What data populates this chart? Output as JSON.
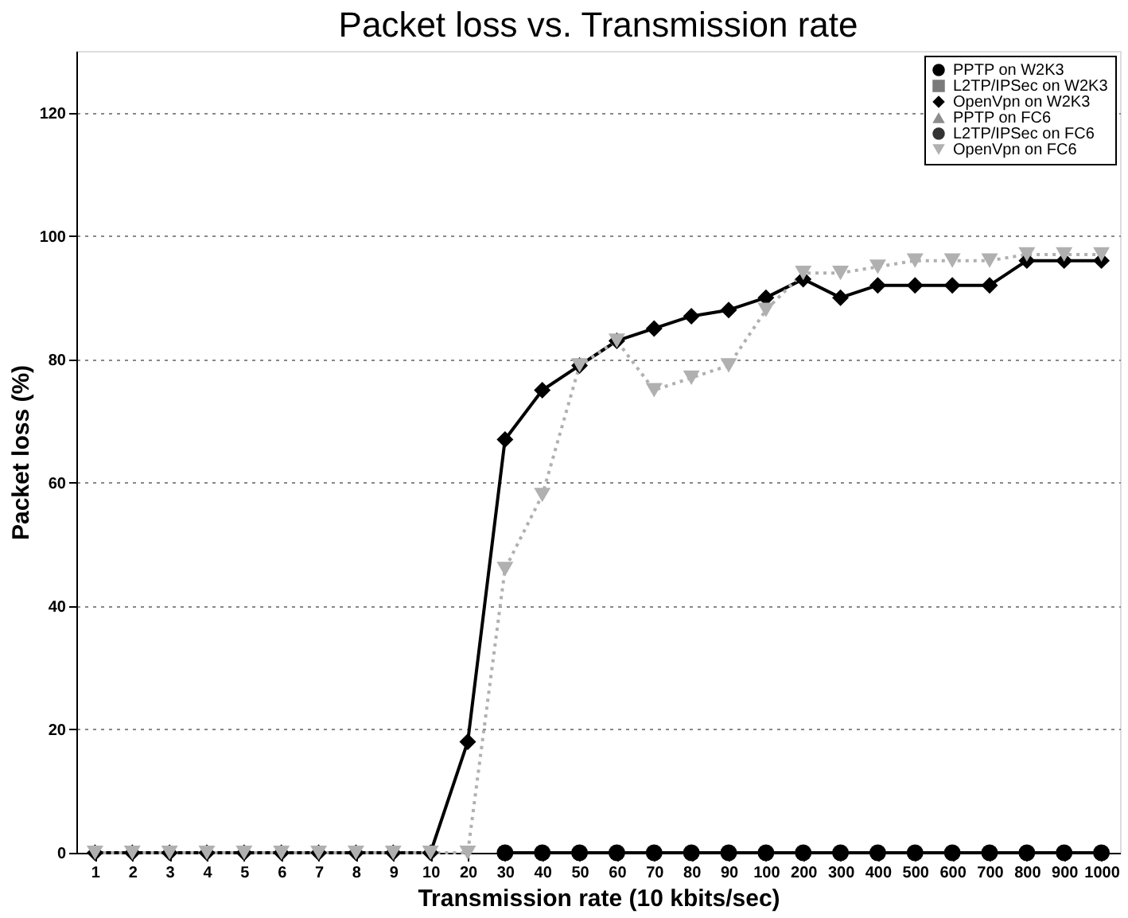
{
  "chart_data": {
    "type": "line",
    "title": "Packet loss vs. Transmission rate",
    "xlabel": "Transmission rate (10 kbits/sec)",
    "ylabel": "Packet loss (%)",
    "categories": [
      "1",
      "2",
      "3",
      "4",
      "5",
      "6",
      "7",
      "8",
      "9",
      "10",
      "20",
      "30",
      "40",
      "50",
      "60",
      "70",
      "80",
      "90",
      "100",
      "200",
      "300",
      "400",
      "500",
      "600",
      "700",
      "800",
      "900",
      "1000"
    ],
    "ylim": [
      0,
      130
    ],
    "yticks": [
      0,
      20,
      40,
      60,
      80,
      100,
      120
    ],
    "grid": "y",
    "legend": "top right",
    "series": [
      {
        "name": "PPTP on W2K3",
        "color": "#000000",
        "marker": "circle",
        "line_style": "solid",
        "values": [
          null,
          null,
          null,
          null,
          null,
          null,
          null,
          null,
          null,
          null,
          null,
          0,
          0,
          0,
          0,
          0,
          0,
          0,
          0,
          0,
          0,
          0,
          0,
          0,
          0,
          0,
          0,
          0
        ]
      },
      {
        "name": "L2TP/IPSec on W2K3",
        "color": "#7a7a7a",
        "marker": "square",
        "line_style": "solid",
        "values": [
          null,
          null,
          null,
          null,
          null,
          null,
          null,
          null,
          null,
          null,
          null,
          null,
          null,
          null,
          null,
          null,
          null,
          null,
          null,
          null,
          null,
          null,
          null,
          null,
          null,
          null,
          null,
          null
        ]
      },
      {
        "name": "OpenVpn on W2K3",
        "color": "#000000",
        "marker": "diamond",
        "line_style": "solid",
        "values": [
          0,
          0,
          0,
          0,
          0,
          0,
          0,
          0,
          0,
          0,
          18,
          67,
          75,
          79,
          83,
          85,
          87,
          88,
          90,
          93,
          90,
          92,
          92,
          92,
          92,
          96,
          96,
          96
        ]
      },
      {
        "name": "PPTP on FC6",
        "color": "#8c8c8c",
        "marker": "triangle",
        "line_style": "solid",
        "values": [
          null,
          null,
          null,
          null,
          null,
          null,
          null,
          null,
          null,
          null,
          null,
          null,
          null,
          null,
          null,
          null,
          null,
          null,
          null,
          null,
          null,
          null,
          null,
          null,
          null,
          null,
          null,
          null
        ]
      },
      {
        "name": "L2TP/IPSec on FC6",
        "color": "#333333",
        "marker": "circle",
        "line_style": "solid",
        "values": [
          null,
          null,
          null,
          null,
          null,
          null,
          null,
          null,
          null,
          null,
          null,
          null,
          null,
          null,
          null,
          null,
          null,
          null,
          null,
          null,
          null,
          null,
          null,
          null,
          null,
          null,
          null,
          null
        ]
      },
      {
        "name": "OpenVpn on FC6",
        "color": "#b0b0b0",
        "marker": "triangle-down",
        "line_style": "dotted",
        "values": [
          0,
          0,
          0,
          0,
          0,
          0,
          0,
          0,
          0,
          0,
          0,
          46,
          58,
          79,
          83,
          75,
          77,
          79,
          88,
          94,
          94,
          95,
          96,
          96,
          96,
          97,
          97,
          97
        ]
      }
    ]
  }
}
